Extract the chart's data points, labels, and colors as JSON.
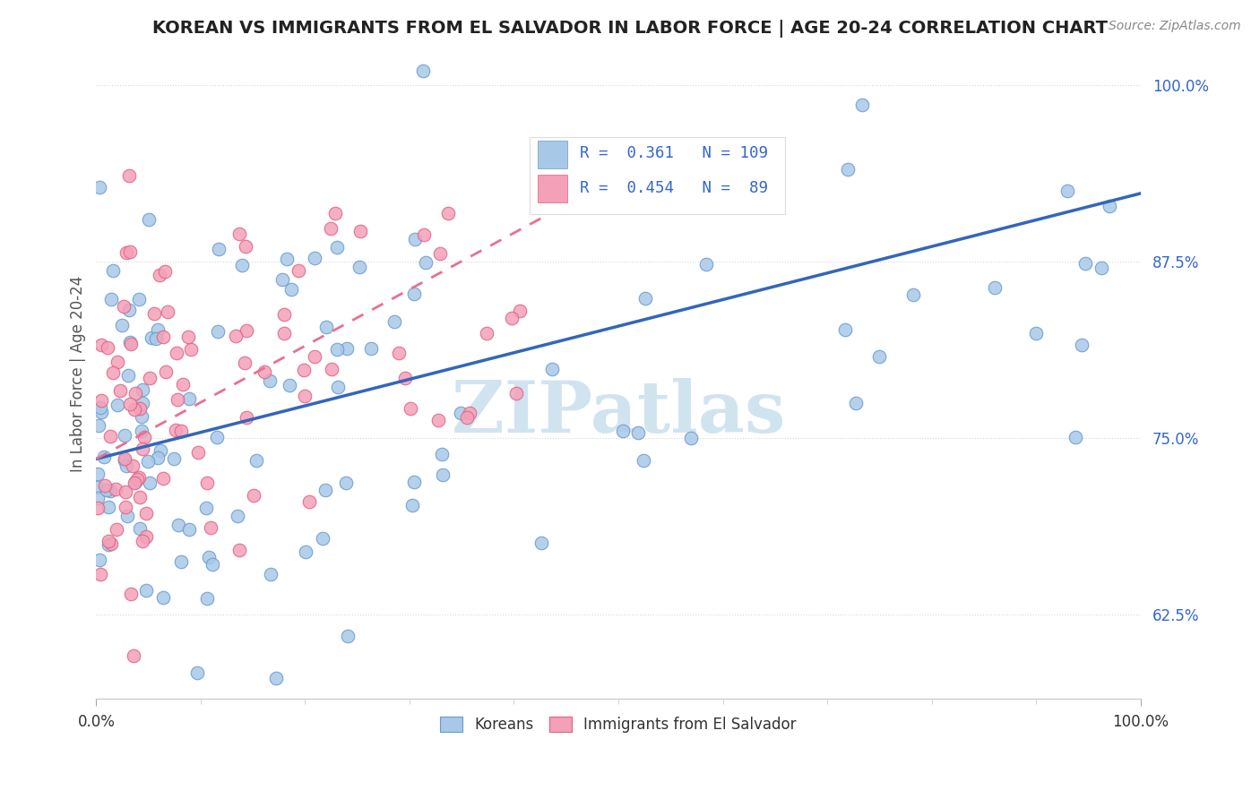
{
  "title": "KOREAN VS IMMIGRANTS FROM EL SALVADOR IN LABOR FORCE | AGE 20-24 CORRELATION CHART",
  "source_text": "Source: ZipAtlas.com",
  "ylabel": "In Labor Force | Age 20-24",
  "xlim": [
    0.0,
    1.0
  ],
  "ylim": [
    0.565,
    1.025
  ],
  "ytick_labels": [
    "62.5%",
    "75.0%",
    "87.5%",
    "100.0%"
  ],
  "ytick_values": [
    0.625,
    0.75,
    0.875,
    1.0
  ],
  "blue_color": "#a8c8e8",
  "blue_edge_color": "#6699cc",
  "pink_color": "#f4a0b8",
  "pink_edge_color": "#e06080",
  "blue_line_color": "#3366bb",
  "pink_line_color": "#e87090",
  "watermark_text": "ZIPatlas",
  "watermark_color": "#d0e4f0",
  "background_color": "#ffffff",
  "grid_color": "#cccccc",
  "title_color": "#222222",
  "axis_label_color": "#555555",
  "legend_text_color": "#3366cc",
  "tick_label_color": "#3366cc",
  "bottom_legend_color": "#333333",
  "source_color": "#888888",
  "blue_line_x": [
    0.0,
    1.0
  ],
  "blue_line_y": [
    0.735,
    0.923
  ],
  "pink_line_x": [
    0.0,
    0.5
  ],
  "pink_line_y": [
    0.735,
    0.935
  ]
}
